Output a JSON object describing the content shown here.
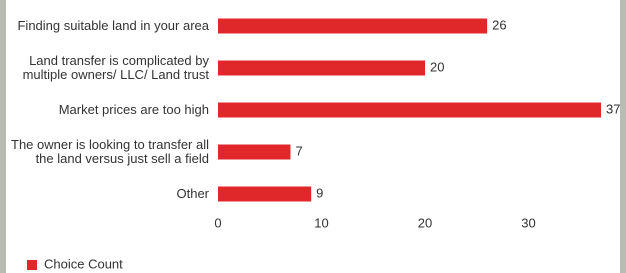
{
  "chart_data": {
    "type": "bar",
    "orientation": "horizontal",
    "categories": [
      "Finding suitable land in your area",
      "Land transfer is complicated by multiple owners/ LLC/ Land trust",
      "Market prices are too high",
      "The owner is looking to transfer all the land versus just sell a field",
      "Other"
    ],
    "series": [
      {
        "name": "Choice Count",
        "color": "#e0282b",
        "values": [
          26,
          20,
          37,
          7,
          9
        ]
      }
    ],
    "xlim": [
      0,
      37
    ],
    "xticks": [
      0,
      10,
      20,
      30
    ],
    "legend": "bottom-left"
  }
}
